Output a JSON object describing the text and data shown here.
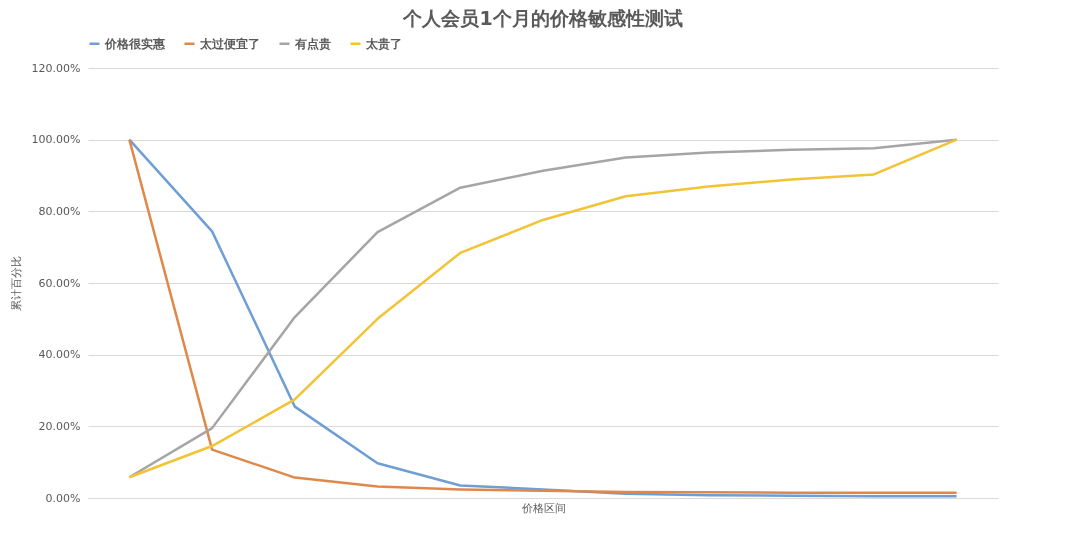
{
  "chart_data": {
    "type": "line",
    "title": "个人会员1个月的价格敏感性测试",
    "xlabel": "价格区间",
    "ylabel": "累计百分比",
    "categories": [
      null,
      null,
      null,
      null,
      null,
      null,
      null,
      null,
      null,
      null,
      null
    ],
    "series": [
      {
        "name": "价格很实惠",
        "color": "#6f9ed4",
        "values": [
          100,
          74.4,
          25.5,
          9.7,
          3.5,
          2.4,
          1.2,
          0.8,
          0.6,
          0.5,
          0.5
        ]
      },
      {
        "name": "太过便宜了",
        "color": "#e0884a",
        "values": [
          100,
          13.5,
          5.7,
          3.2,
          2.4,
          2.0,
          1.7,
          1.6,
          1.5,
          1.5,
          1.5
        ]
      },
      {
        "name": "有点贵",
        "color": "#a5a5a5",
        "values": [
          5.8,
          19.5,
          50.5,
          74.2,
          86.6,
          91.3,
          95.0,
          96.4,
          97.2,
          97.6,
          100
        ]
      },
      {
        "name": "太贵了",
        "color": "#f2c335",
        "values": [
          5.8,
          14.5,
          27.5,
          50.0,
          68.4,
          77.6,
          84.2,
          86.9,
          88.9,
          90.3,
          100
        ]
      }
    ],
    "ylim": [
      0,
      120
    ],
    "yticks": [
      {
        "value": 0,
        "label": "0.00%"
      },
      {
        "value": 20,
        "label": "20.00%"
      },
      {
        "value": 40,
        "label": "40.00%"
      },
      {
        "value": 60,
        "label": "60.00%"
      },
      {
        "value": 80,
        "label": "80.00%"
      },
      {
        "value": 100,
        "label": "100.00%"
      },
      {
        "value": 120,
        "label": "120.00%"
      }
    ],
    "grid": "y",
    "legend": "top",
    "marker": "none",
    "line_style": "solid",
    "tick_labels": "y"
  }
}
